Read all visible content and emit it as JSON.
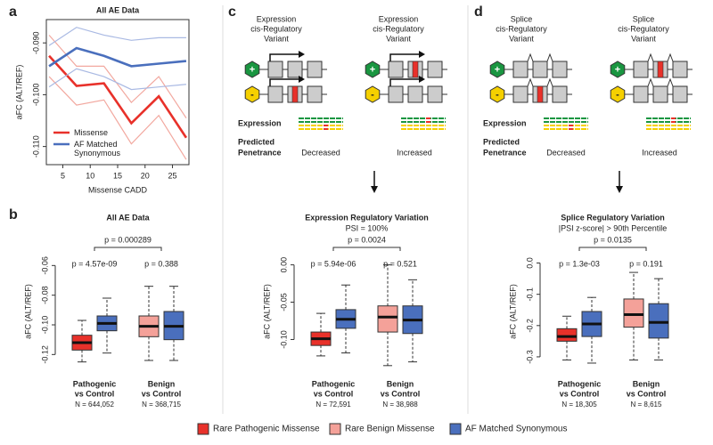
{
  "panel_labels": [
    "a",
    "b",
    "c",
    "d"
  ],
  "chart_data": [
    {
      "type": "line",
      "title": "All AE Data",
      "xlabel": "Missense CADD",
      "ylabel": "aFC (ALT/REF)",
      "x": [
        2.5,
        7.5,
        12.5,
        17.5,
        22.5,
        27.5
      ],
      "xlim": [
        2,
        28
      ],
      "xticks": [
        5,
        10,
        15,
        20,
        25
      ],
      "ylim": [
        -0.1135,
        -0.0855
      ],
      "yticks": [
        {
          "value": -0.11,
          "label": "-0.110"
        },
        {
          "value": -0.1,
          "label": "-0.100"
        },
        {
          "value": -0.09,
          "label": "-0.090"
        }
      ],
      "legend": "bottom left",
      "series": [
        {
          "name": "Missense",
          "color": "#e8312a",
          "band_color": "#f2a89f",
          "values": [
            -0.0925,
            -0.0983,
            -0.0978,
            -0.1055,
            -0.1003,
            -0.1083
          ],
          "upper": [
            -0.0885,
            -0.0945,
            -0.0945,
            -0.1015,
            -0.0965,
            -0.1045
          ],
          "lower": [
            -0.0965,
            -0.102,
            -0.101,
            -0.1095,
            -0.104,
            -0.1125
          ]
        },
        {
          "name": "AF Matched Synonymous",
          "color": "#4a6fbd",
          "band_color": "#a9b9e3",
          "values": [
            -0.0945,
            -0.091,
            -0.0925,
            -0.0945,
            -0.094,
            -0.0935
          ],
          "upper": [
            -0.0905,
            -0.087,
            -0.0885,
            -0.0895,
            -0.089,
            -0.089
          ],
          "lower": [
            -0.0985,
            -0.095,
            -0.0965,
            -0.099,
            -0.0985,
            -0.098
          ]
        }
      ]
    },
    {
      "type": "boxplot",
      "title": "All AE Data",
      "ylabel": "aFC (ALT/REF)",
      "ylim": [
        -0.13,
        -0.052
      ],
      "yticks": [
        -0.12,
        {
          "value": -0.1,
          "label": "-0.10"
        },
        {
          "value": -0.08,
          "label": "-0.08"
        },
        -0.06
      ],
      "comparison_p": "p = 0.000289",
      "groups": [
        {
          "label": [
            "Pathogenic",
            "vs Control"
          ],
          "n": "N = 644,052",
          "p": "p = 4.57e-09",
          "boxes": [
            {
              "color": "#e8312a",
              "min": -0.125,
              "q1": -0.117,
              "median": -0.112,
              "q3": -0.107,
              "max": -0.097
            },
            {
              "color": "#4a6fbd",
              "min": -0.119,
              "q1": -0.104,
              "median": -0.099,
              "q3": -0.094,
              "max": -0.082
            }
          ]
        },
        {
          "label": [
            "Benign",
            "vs Control"
          ],
          "n": "N = 368,715",
          "p": "p = 0.388",
          "boxes": [
            {
              "color": "#f4a199",
              "min": -0.124,
              "q1": -0.108,
              "median": -0.101,
              "q3": -0.094,
              "max": -0.074
            },
            {
              "color": "#4a6fbd",
              "min": -0.124,
              "q1": -0.11,
              "median": -0.101,
              "q3": -0.091,
              "max": -0.074
            }
          ]
        }
      ]
    },
    {
      "type": "boxplot",
      "title": "Expression Regulatory Variation",
      "subtitle": "PSI = 100%",
      "ylabel": "aFC (ALT/REF)",
      "ylim": [
        -0.14,
        0.015
      ],
      "yticks": [
        {
          "value": -0.1,
          "label": "-0.10"
        },
        -0.05,
        {
          "value": 0,
          "label": "0.00"
        }
      ],
      "comparison_p": "p = 0.0024",
      "groups": [
        {
          "label": [
            "Pathogenic",
            "vs Control"
          ],
          "n": "N = 72,591",
          "p": "p = 5.94e-06",
          "boxes": [
            {
              "color": "#e8312a",
              "min": -0.122,
              "q1": -0.108,
              "median": -0.099,
              "q3": -0.09,
              "max": -0.065
            },
            {
              "color": "#4a6fbd",
              "min": -0.118,
              "q1": -0.085,
              "median": -0.073,
              "q3": -0.06,
              "max": -0.027
            }
          ]
        },
        {
          "label": [
            "Benign",
            "vs Control"
          ],
          "n": "N = 38,988",
          "p": "p = 0.521",
          "boxes": [
            {
              "color": "#f4a199",
              "min": -0.135,
              "q1": -0.09,
              "median": -0.07,
              "q3": -0.055,
              "max": 0.0
            },
            {
              "color": "#4a6fbd",
              "min": -0.13,
              "q1": -0.092,
              "median": -0.074,
              "q3": -0.055,
              "max": -0.02
            }
          ]
        }
      ]
    },
    {
      "type": "boxplot",
      "title": "Splice Regulatory Variation",
      "subtitle": "|PSI z-score| > 90th Percentile",
      "ylabel": "aFC (ALT/REF)",
      "ylim": [
        -0.34,
        0.03
      ],
      "yticks": [
        -0.3,
        -0.2,
        -0.1,
        {
          "value": 0,
          "label": "0.0"
        }
      ],
      "comparison_p": "p = 0.0135",
      "groups": [
        {
          "label": [
            "Pathogenic",
            "vs Control"
          ],
          "n": "N = 18,305",
          "p": "p = 1.3e-03",
          "boxes": [
            {
              "color": "#e8312a",
              "min": -0.31,
              "q1": -0.25,
              "median": -0.235,
              "q3": -0.21,
              "max": -0.17
            },
            {
              "color": "#4a6fbd",
              "min": -0.32,
              "q1": -0.235,
              "median": -0.195,
              "q3": -0.155,
              "max": -0.11
            }
          ]
        },
        {
          "label": [
            "Benign",
            "vs Control"
          ],
          "n": "N = 8,615",
          "p": "p = 0.191",
          "boxes": [
            {
              "color": "#f4a199",
              "min": -0.31,
              "q1": -0.205,
              "median": -0.165,
              "q3": -0.115,
              "max": -0.03
            },
            {
              "color": "#4a6fbd",
              "min": -0.31,
              "q1": -0.24,
              "median": -0.19,
              "q3": -0.13,
              "max": -0.05
            }
          ]
        }
      ]
    }
  ],
  "schematics": [
    {
      "kind": "expression",
      "variant_labels": [
        [
          "Expression",
          "cis-Regulatory",
          "Variant"
        ],
        [
          "Expression",
          "cis-Regulatory",
          "Variant"
        ]
      ],
      "plus": "+",
      "minus": "-",
      "row_labels": [
        "Expression",
        [
          "Predicted",
          "Penetrance"
        ]
      ],
      "outcomes": [
        "Decreased",
        "Increased"
      ]
    },
    {
      "kind": "splice",
      "variant_labels": [
        [
          "Splice",
          "cis-Regulatory",
          "Variant"
        ],
        [
          "Splice",
          "cis-Regulatory",
          "Variant"
        ]
      ],
      "plus": "+",
      "minus": "-",
      "row_labels": [
        "Expression",
        [
          "Predicted",
          "Penetrance"
        ]
      ],
      "outcomes": [
        "Decreased",
        "Increased"
      ]
    }
  ],
  "legend": [
    {
      "name": "Rare Pathogenic Missense",
      "color": "#e8312a"
    },
    {
      "name": "Rare Benign Missense",
      "color": "#f4a199"
    },
    {
      "name": "AF Matched Synonymous",
      "color": "#4a6fbd"
    }
  ]
}
